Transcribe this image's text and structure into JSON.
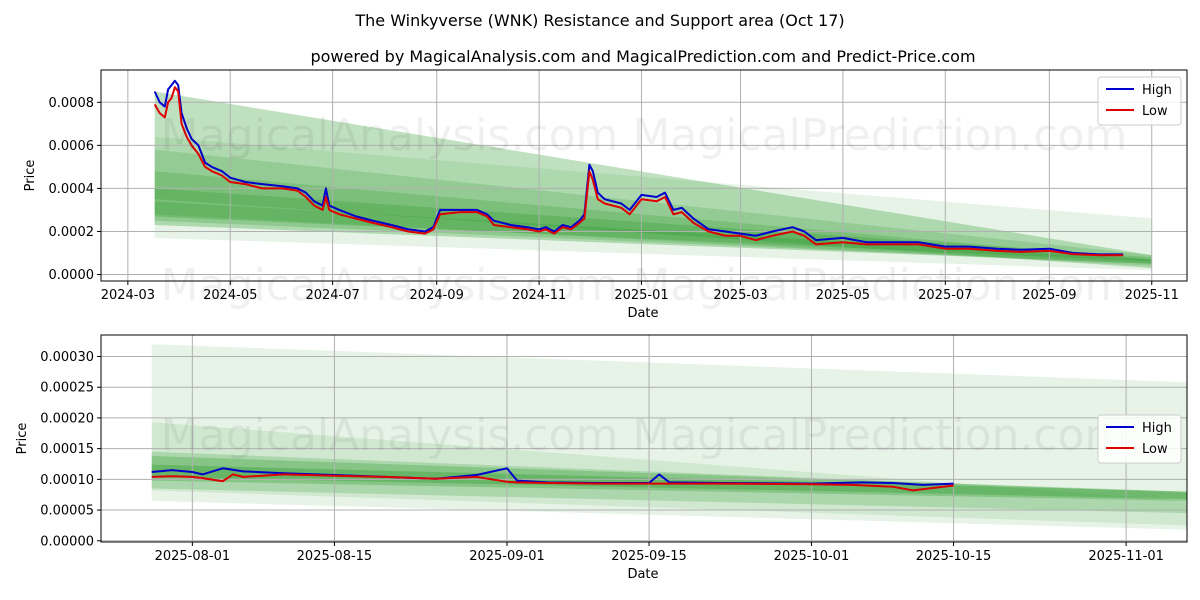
{
  "title": "The Winkyverse (WNK) Resistance and Support area (Oct 17)",
  "subtitle": "powered by MagicalAnalysis.com and MagicalPrediction.com and Predict-Price.com",
  "watermark": "MagicalAnalysis.com   MagicalPrediction.com",
  "colors": {
    "high": "#0000cc",
    "low": "#dd0000",
    "band": "#2e9a2e",
    "grid": "#b0b0b0"
  },
  "chart_data": [
    {
      "type": "line",
      "name": "full-range",
      "xlabel": "Date",
      "ylabel": "Price",
      "xlim": [
        "2024-02-14",
        "2025-11-22"
      ],
      "ylim": [
        -3e-05,
        0.00095
      ],
      "xticks": [
        "2024-03-01",
        "2024-05-01",
        "2024-07-01",
        "2024-09-01",
        "2024-11-01",
        "2025-01-01",
        "2025-03-01",
        "2025-05-01",
        "2025-07-01",
        "2025-09-01",
        "2025-11-01"
      ],
      "xtick_labels": [
        "2024-03",
        "2024-05",
        "2024-07",
        "2024-09",
        "2024-11",
        "2025-01",
        "2025-03",
        "2025-05",
        "2025-07",
        "2025-09",
        "2025-11"
      ],
      "yticks": [
        0,
        0.0002,
        0.0004,
        0.0006,
        0.0008
      ],
      "ytick_labels": [
        "0.0000",
        "0.0002",
        "0.0004",
        "0.0006",
        "0.0008"
      ],
      "legend": {
        "position": "top-right",
        "entries": [
          "High",
          "Low"
        ]
      },
      "bands": [
        {
          "x": [
            "2024-03-17",
            "2025-11-01"
          ],
          "upper": [
            0.00085,
            9e-05
          ],
          "lower": [
            0.00035,
            3e-05
          ],
          "opacity": 0.3
        },
        {
          "x": [
            "2024-03-17",
            "2025-11-01"
          ],
          "upper": [
            0.00064,
            0.00026
          ],
          "lower": [
            0.00017,
            2e-05
          ],
          "opacity": 0.12
        },
        {
          "x": [
            "2024-03-17",
            "2025-11-01"
          ],
          "upper": [
            0.00058,
            9e-05
          ],
          "lower": [
            0.00028,
            4e-05
          ],
          "opacity": 0.2
        },
        {
          "x": [
            "2024-03-17",
            "2025-11-01"
          ],
          "upper": [
            0.00048,
            7e-05
          ],
          "lower": [
            0.00025,
            5e-05
          ],
          "opacity": 0.25
        },
        {
          "x": [
            "2024-03-17",
            "2025-11-01"
          ],
          "upper": [
            0.0004,
            8e-05
          ],
          "lower": [
            0.00023,
            5e-05
          ],
          "opacity": 0.3
        },
        {
          "x": [
            "2024-03-17",
            "2025-11-01"
          ],
          "upper": [
            0.00034,
            7e-05
          ],
          "lower": [
            0.00027,
            6e-05
          ],
          "opacity": 0.3
        }
      ],
      "series": [
        {
          "name": "High",
          "x": [
            "2024-03-17",
            "2024-03-20",
            "2024-03-23",
            "2024-03-25",
            "2024-03-27",
            "2024-03-29",
            "2024-03-31",
            "2024-04-02",
            "2024-04-05",
            "2024-04-08",
            "2024-04-12",
            "2024-04-16",
            "2024-04-20",
            "2024-04-26",
            "2024-05-01",
            "2024-05-10",
            "2024-05-20",
            "2024-06-01",
            "2024-06-10",
            "2024-06-15",
            "2024-06-20",
            "2024-06-25",
            "2024-06-27",
            "2024-06-29",
            "2024-07-05",
            "2024-07-15",
            "2024-07-25",
            "2024-08-05",
            "2024-08-15",
            "2024-08-25",
            "2024-08-30",
            "2024-09-03",
            "2024-09-15",
            "2024-09-25",
            "2024-10-01",
            "2024-10-05",
            "2024-10-15",
            "2024-10-25",
            "2024-11-01",
            "2024-11-05",
            "2024-11-10",
            "2024-11-15",
            "2024-11-20",
            "2024-11-25",
            "2024-11-28",
            "2024-12-01",
            "2024-12-03",
            "2024-12-06",
            "2024-12-10",
            "2024-12-20",
            "2024-12-25",
            "2025-01-01",
            "2025-01-10",
            "2025-01-15",
            "2025-01-20",
            "2025-01-25",
            "2025-02-01",
            "2025-02-10",
            "2025-02-20",
            "2025-03-01",
            "2025-03-10",
            "2025-03-20",
            "2025-04-01",
            "2025-04-08",
            "2025-04-15",
            "2025-05-01",
            "2025-05-15",
            "2025-06-01",
            "2025-06-15",
            "2025-07-01",
            "2025-07-15",
            "2025-08-01",
            "2025-08-15",
            "2025-09-01",
            "2025-09-15",
            "2025-10-01",
            "2025-10-15"
          ],
          "y": [
            0.00085,
            0.0008,
            0.00078,
            0.00086,
            0.00088,
            0.0009,
            0.00088,
            0.00075,
            0.00068,
            0.00063,
            0.0006,
            0.00052,
            0.0005,
            0.00048,
            0.00045,
            0.00043,
            0.00042,
            0.00041,
            0.0004,
            0.00038,
            0.00034,
            0.00032,
            0.0004,
            0.00032,
            0.0003,
            0.00027,
            0.00025,
            0.00023,
            0.00021,
            0.0002,
            0.00022,
            0.0003,
            0.0003,
            0.0003,
            0.00028,
            0.00025,
            0.00023,
            0.00022,
            0.00021,
            0.00022,
            0.0002,
            0.00023,
            0.00022,
            0.00025,
            0.00028,
            0.00051,
            0.00048,
            0.00038,
            0.00035,
            0.00033,
            0.0003,
            0.00037,
            0.00036,
            0.00038,
            0.0003,
            0.00031,
            0.00026,
            0.00021,
            0.0002,
            0.00019,
            0.00018,
            0.0002,
            0.00022,
            0.0002,
            0.00016,
            0.00017,
            0.00015,
            0.00015,
            0.00015,
            0.00013,
            0.00013,
            0.00012,
            0.000115,
            0.00012,
            0.0001,
            9.35e-05,
            9.35e-05
          ]
        },
        {
          "name": "Low",
          "x": [
            "2024-03-17",
            "2024-03-20",
            "2024-03-23",
            "2024-03-25",
            "2024-03-27",
            "2024-03-29",
            "2024-03-31",
            "2024-04-02",
            "2024-04-05",
            "2024-04-08",
            "2024-04-12",
            "2024-04-16",
            "2024-04-20",
            "2024-04-26",
            "2024-05-01",
            "2024-05-10",
            "2024-05-20",
            "2024-06-01",
            "2024-06-10",
            "2024-06-15",
            "2024-06-20",
            "2024-06-25",
            "2024-06-27",
            "2024-06-29",
            "2024-07-05",
            "2024-07-15",
            "2024-07-25",
            "2024-08-05",
            "2024-08-15",
            "2024-08-25",
            "2024-08-30",
            "2024-09-03",
            "2024-09-15",
            "2024-09-25",
            "2024-10-01",
            "2024-10-05",
            "2024-10-15",
            "2024-10-25",
            "2024-11-01",
            "2024-11-05",
            "2024-11-10",
            "2024-11-15",
            "2024-11-20",
            "2024-11-25",
            "2024-11-28",
            "2024-12-01",
            "2024-12-03",
            "2024-12-06",
            "2024-12-10",
            "2024-12-20",
            "2024-12-25",
            "2025-01-01",
            "2025-01-10",
            "2025-01-15",
            "2025-01-20",
            "2025-01-25",
            "2025-02-01",
            "2025-02-10",
            "2025-02-20",
            "2025-03-01",
            "2025-03-10",
            "2025-03-20",
            "2025-04-01",
            "2025-04-08",
            "2025-04-15",
            "2025-05-01",
            "2025-05-15",
            "2025-06-01",
            "2025-06-15",
            "2025-07-01",
            "2025-07-15",
            "2025-08-01",
            "2025-08-15",
            "2025-09-01",
            "2025-09-15",
            "2025-10-01",
            "2025-10-15"
          ],
          "y": [
            0.00079,
            0.00075,
            0.00073,
            0.0008,
            0.00082,
            0.00087,
            0.00085,
            0.0007,
            0.00064,
            0.0006,
            0.00056,
            0.0005,
            0.00048,
            0.00046,
            0.00043,
            0.00042,
            0.0004,
            0.0004,
            0.00039,
            0.00036,
            0.00032,
            0.0003,
            0.00036,
            0.0003,
            0.00028,
            0.00026,
            0.00024,
            0.00022,
            0.0002,
            0.00019,
            0.00021,
            0.00028,
            0.00029,
            0.00029,
            0.00027,
            0.00023,
            0.00022,
            0.00021,
            0.0002,
            0.00021,
            0.00019,
            0.00022,
            0.00021,
            0.00024,
            0.00026,
            0.00048,
            0.00044,
            0.00035,
            0.00033,
            0.00031,
            0.00028,
            0.00035,
            0.00034,
            0.00036,
            0.00028,
            0.00029,
            0.00024,
            0.0002,
            0.00018,
            0.00018,
            0.00016,
            0.00018,
            0.0002,
            0.00018,
            0.00014,
            0.00015,
            0.00014,
            0.00014,
            0.00014,
            0.00012,
            0.00012,
            0.00011,
            0.000105,
            0.00011,
            9.5e-05,
            9e-05,
            9e-05
          ]
        }
      ]
    },
    {
      "type": "line",
      "name": "zoomed",
      "xlabel": "Date",
      "ylabel": "Price",
      "xlim": [
        "2025-07-23",
        "2025-11-07"
      ],
      "ylim": [
        -2e-06,
        0.000335
      ],
      "xticks": [
        "2025-08-01",
        "2025-08-15",
        "2025-09-01",
        "2025-09-15",
        "2025-10-01",
        "2025-10-15",
        "2025-11-01"
      ],
      "xtick_labels": [
        "2025-08-01",
        "2025-08-15",
        "2025-09-01",
        "2025-09-15",
        "2025-10-01",
        "2025-10-15",
        "2025-11-01"
      ],
      "yticks": [
        0,
        5e-05,
        0.0001,
        0.00015,
        0.0002,
        0.00025,
        0.0003
      ],
      "ytick_labels": [
        "0.00000",
        "0.00005",
        "0.00010",
        "0.00015",
        "0.00020",
        "0.00025",
        "0.00030"
      ],
      "legend": {
        "position": "center-right",
        "entries": [
          "High",
          "Low"
        ]
      },
      "bands": [
        {
          "x": [
            "2025-07-28",
            "2025-11-07"
          ],
          "upper": [
            0.00032,
            0.000258
          ],
          "lower": [
            6.5e-05,
            1.8e-05
          ],
          "opacity": 0.12
        },
        {
          "x": [
            "2025-07-28",
            "2025-11-07"
          ],
          "upper": [
            0.000193,
            6.5e-05
          ],
          "lower": [
            8.2e-05,
            2.5e-05
          ],
          "opacity": 0.12
        },
        {
          "x": [
            "2025-07-28",
            "2025-11-07"
          ],
          "upper": [
            0.000145,
            7.8e-05
          ],
          "lower": [
            8.5e-05,
            4.5e-05
          ],
          "opacity": 0.22
        },
        {
          "x": [
            "2025-07-28",
            "2025-11-07"
          ],
          "upper": [
            0.000138,
            8e-05
          ],
          "lower": [
            9.8e-05,
            6.5e-05
          ],
          "opacity": 0.3
        },
        {
          "x": [
            "2025-07-28",
            "2025-11-07"
          ],
          "upper": [
            0.000124,
            8e-05
          ],
          "lower": [
            0.000104,
            6.8e-05
          ],
          "opacity": 0.35
        }
      ],
      "series": [
        {
          "name": "High",
          "x": [
            "2025-07-28",
            "2025-07-30",
            "2025-08-01",
            "2025-08-02",
            "2025-08-04",
            "2025-08-06",
            "2025-08-10",
            "2025-08-15",
            "2025-08-20",
            "2025-08-25",
            "2025-08-29",
            "2025-09-01",
            "2025-09-02",
            "2025-09-05",
            "2025-09-10",
            "2025-09-15",
            "2025-09-16",
            "2025-09-17",
            "2025-09-22",
            "2025-10-01",
            "2025-10-06",
            "2025-10-09",
            "2025-10-12",
            "2025-10-15"
          ],
          "y": [
            0.000112,
            0.000115,
            0.000112,
            0.000108,
            0.000118,
            0.000113,
            0.00011,
            0.000107,
            0.000104,
            0.000101,
            0.000107,
            0.000118,
            9.8e-05,
            9.5e-05,
            9.4e-05,
            9.4e-05,
            0.000108,
            9.5e-05,
            9.4e-05,
            9.3e-05,
            9.5e-05,
            9.4e-05,
            9.1e-05,
            9.3e-05
          ]
        },
        {
          "name": "Low",
          "x": [
            "2025-07-28",
            "2025-07-30",
            "2025-08-01",
            "2025-08-02",
            "2025-08-04",
            "2025-08-05",
            "2025-08-06",
            "2025-08-10",
            "2025-08-15",
            "2025-08-20",
            "2025-08-25",
            "2025-08-29",
            "2025-09-01",
            "2025-09-02",
            "2025-09-05",
            "2025-09-10",
            "2025-09-15",
            "2025-09-22",
            "2025-10-01",
            "2025-10-05",
            "2025-10-09",
            "2025-10-11",
            "2025-10-15"
          ],
          "y": [
            0.000104,
            0.000105,
            0.000104,
            0.000102,
            9.7e-05,
            0.000108,
            0.000104,
            0.000108,
            0.000106,
            0.000104,
            0.000101,
            0.000104,
            9.6e-05,
            9.5e-05,
            9.4e-05,
            9.3e-05,
            9.3e-05,
            9.3e-05,
            9.2e-05,
            9.1e-05,
            8.8e-05,
            8.2e-05,
            9e-05
          ]
        }
      ]
    }
  ]
}
